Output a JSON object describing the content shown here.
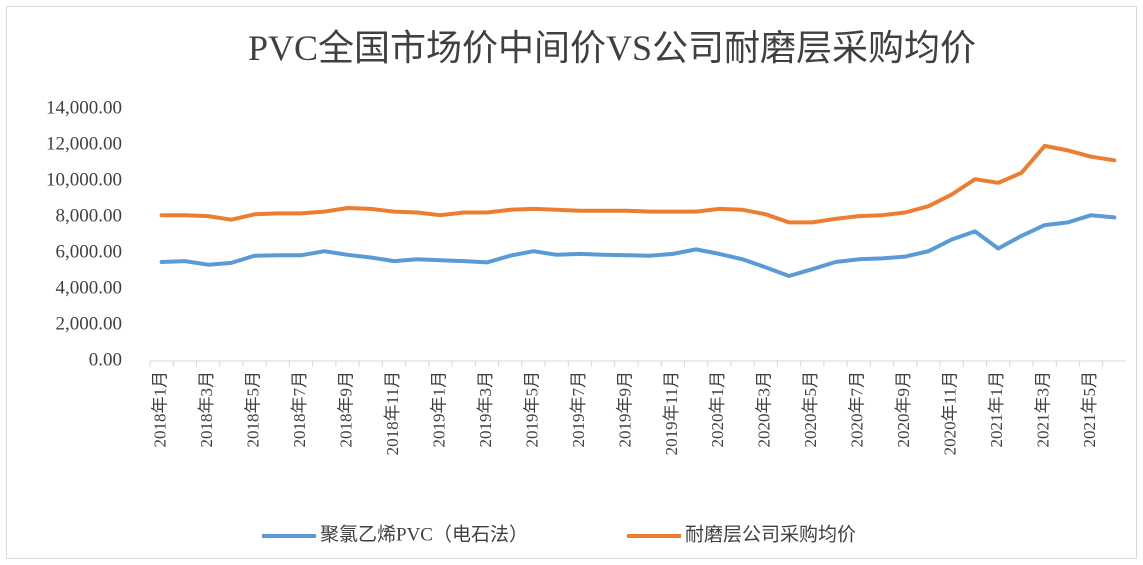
{
  "chart_data": {
    "type": "line",
    "title": "PVC全国市场价中间价VS公司耐磨层采购均价",
    "categories": [
      "2018年1月",
      null,
      "2018年3月",
      null,
      "2018年5月",
      null,
      "2018年7月",
      null,
      "2018年9月",
      null,
      "2018年11月",
      null,
      "2019年1月",
      null,
      "2019年3月",
      null,
      "2019年5月",
      null,
      "2019年7月",
      null,
      "2019年9月",
      null,
      "2019年11月",
      null,
      "2020年1月",
      null,
      "2020年3月",
      null,
      "2020年5月",
      null,
      "2020年7月",
      null,
      "2020年9月",
      null,
      "2020年11月",
      null,
      "2021年1月",
      null,
      "2021年3月",
      null,
      "2021年5月",
      null
    ],
    "series": [
      {
        "name": "聚氯乙烯PVC（电石法）",
        "color": "#5b9bd5",
        "values": [
          5500,
          5550,
          5350,
          5450,
          5850,
          5870,
          5870,
          6100,
          5900,
          5750,
          5550,
          5650,
          5600,
          5550,
          5480,
          5850,
          6100,
          5900,
          5950,
          5900,
          5880,
          5850,
          5950,
          6200,
          5950,
          5650,
          5200,
          4720,
          5100,
          5500,
          5650,
          5700,
          5800,
          6100,
          6750,
          7200,
          6250,
          6950,
          7550,
          7700,
          8100,
          7980
        ]
      },
      {
        "name": "耐磨层公司采购均价",
        "color": "#ed7d31",
        "values": [
          8100,
          8100,
          8050,
          7850,
          8150,
          8200,
          8200,
          8300,
          8500,
          8450,
          8300,
          8250,
          8100,
          8250,
          8250,
          8400,
          8450,
          8400,
          8350,
          8350,
          8350,
          8300,
          8300,
          8300,
          8450,
          8400,
          8150,
          7700,
          7700,
          7900,
          8050,
          8100,
          8250,
          8600,
          9250,
          10100,
          9900,
          10450,
          11950,
          11700,
          11350,
          11150
        ]
      }
    ],
    "ylim": [
      0,
      14000
    ],
    "yticks": [
      {
        "value": 0,
        "label": "0.00"
      },
      {
        "value": 2000,
        "label": "2,000.00"
      },
      {
        "value": 4000,
        "label": "4,000.00"
      },
      {
        "value": 6000,
        "label": "6,000.00"
      },
      {
        "value": 8000,
        "label": "8,000.00"
      },
      {
        "value": 10000,
        "label": "10,000.00"
      },
      {
        "value": 12000,
        "label": "12,000.00"
      },
      {
        "value": 14000,
        "label": "14,000.00"
      }
    ],
    "legend": "bottom"
  }
}
